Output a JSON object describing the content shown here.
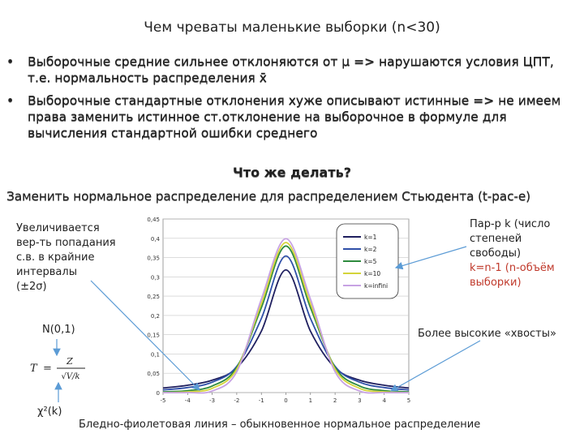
{
  "title": "Чем чреваты маленькие выборки (n<30)",
  "bullets": [
    {
      "symbol": "•",
      "text": "Выборочные средние сильнее отклоняются от μ => нарушаются условия ЦПТ, т.е. нормальность распределения x̄"
    },
    {
      "symbol": "•",
      "text": "Выборочные стандартные отклонения хуже описывают истинные => не имеем права заменить истинное ст.отклонение на выборочное в формуле для вычисления стандартной ошибки среднего"
    }
  ],
  "question": "Что же делать?",
  "replace_text": "Заменить нормальное распределение для  распределением Стьюдента (t-рас-е)",
  "left_note": [
    "Увеличивается",
    "вер-ть попадания",
    "с.в. в крайние",
    "интервалы",
    "(±2σ)"
  ],
  "right_note": {
    "lines": [
      "Пар-р k (число",
      "степеней",
      "свободы)"
    ],
    "red_lines": [
      "k=n-1 (n-объём",
      "выборки)"
    ]
  },
  "n01_label": "N(0,1)",
  "chi_label": "χ²(k)",
  "tails_label": "Более высокие «хвосты»",
  "bottom_caption": "Бледно-фиолетовая линия – обыкновенное нормальное распределение",
  "formula": {
    "lhs": "T",
    "eq": "=",
    "num": "Z",
    "den": "√V/k"
  },
  "chart_data": {
    "type": "line",
    "title": "",
    "xlabel": "",
    "ylabel": "",
    "xlim": [
      -5,
      5
    ],
    "ylim": [
      0,
      0.45
    ],
    "x_ticks": [
      "-5",
      "-4",
      "-3",
      "-2",
      "-1",
      "0",
      "1",
      "2",
      "3",
      "4",
      "5"
    ],
    "y_ticks": [
      "0",
      "0,05",
      "0,1",
      "0,15",
      "0,2",
      "0,25",
      "0,3",
      "0,35",
      "0,4",
      "0,45"
    ],
    "grid": true,
    "legend_position": "top-right",
    "series": [
      {
        "name": "k=1",
        "color": "#1f1f5f",
        "x": [
          -5,
          -4,
          -3,
          -2,
          -1,
          0,
          1,
          2,
          3,
          4,
          5
        ],
        "values": [
          0.012,
          0.019,
          0.032,
          0.064,
          0.159,
          0.318,
          0.159,
          0.064,
          0.032,
          0.019,
          0.012
        ]
      },
      {
        "name": "k=2",
        "color": "#2f4fa8",
        "x": [
          -5,
          -4,
          -3,
          -2,
          -1,
          0,
          1,
          2,
          3,
          4,
          5
        ],
        "values": [
          0.007,
          0.013,
          0.027,
          0.068,
          0.192,
          0.354,
          0.192,
          0.068,
          0.027,
          0.013,
          0.007
        ]
      },
      {
        "name": "k=5",
        "color": "#2e8b3e",
        "x": [
          -5,
          -4,
          -3,
          -2,
          -1,
          0,
          1,
          2,
          3,
          4,
          5
        ],
        "values": [
          0.002,
          0.005,
          0.017,
          0.065,
          0.22,
          0.38,
          0.22,
          0.065,
          0.017,
          0.005,
          0.002
        ]
      },
      {
        "name": "k=10",
        "color": "#d4d43a",
        "x": [
          -5,
          -4,
          -3,
          -2,
          -1,
          0,
          1,
          2,
          3,
          4,
          5
        ],
        "values": [
          0.0,
          0.002,
          0.011,
          0.061,
          0.23,
          0.389,
          0.23,
          0.061,
          0.011,
          0.002,
          0.0
        ]
      },
      {
        "name": "k=infini",
        "color": "#c7a2e3",
        "x": [
          -5,
          -4,
          -3,
          -2,
          -1,
          0,
          1,
          2,
          3,
          4,
          5
        ],
        "values": [
          0.0,
          0.0,
          0.004,
          0.054,
          0.242,
          0.399,
          0.242,
          0.054,
          0.004,
          0.0,
          0.0
        ]
      }
    ]
  }
}
